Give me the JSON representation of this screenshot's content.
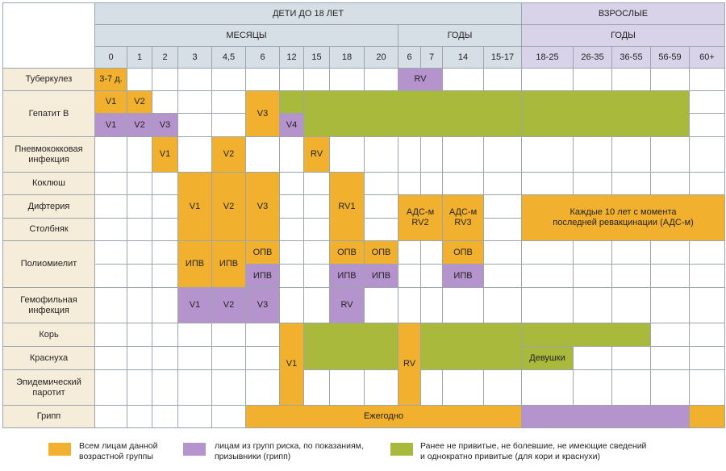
{
  "colors": {
    "grid_line": "#9aa5ad",
    "header_child": "#d5dfe5",
    "header_adult": "#d9d3ea",
    "label_bg": "#f5edd9",
    "orange": "#f1b12f",
    "purple": "#b594cd",
    "green": "#a8b93c"
  },
  "header": {
    "children_title": "ДЕТИ ДО 18 ЛЕТ",
    "adults_title": "ВЗРОСЛЫЕ",
    "months_title": "МЕСЯЦЫ",
    "years_title": "ГОДЫ",
    "adult_years_title": "ГОДЫ",
    "ages": [
      "0",
      "1",
      "2",
      "3",
      "4,5",
      "6",
      "12",
      "15",
      "18",
      "20",
      "6",
      "7",
      "14",
      "15-17",
      "18-25",
      "26-35",
      "36-55",
      "56-59",
      "60+"
    ]
  },
  "rows": [
    "Туберкулез",
    "Гепатит В",
    "Пневмококковая инфекция",
    "Коклюш",
    "Дифтерия",
    "Столбняк",
    "Полиомиелит",
    "Гемофильная инфекция",
    "Корь",
    "Краснуха",
    "Эпидемический паротит",
    "Грипп"
  ],
  "blocks": [
    {
      "r": 0,
      "c": 0,
      "color": "orange",
      "text": "3-7 д."
    },
    {
      "r": 0,
      "c": 10,
      "cs": 2,
      "color": "purple",
      "text": "RV"
    },
    {
      "r": 1,
      "c": 0,
      "color": "orange",
      "text": "V1"
    },
    {
      "r": 1,
      "c": 1,
      "color": "orange",
      "text": "V2"
    },
    {
      "r": 1,
      "c": 5,
      "rs": 2,
      "color": "orange",
      "text": "V3"
    },
    {
      "r": 1,
      "c": 6,
      "color": "green",
      "text": ""
    },
    {
      "r": 1,
      "c": 7,
      "cs": 7,
      "rs": 2,
      "color": "green",
      "text": ""
    },
    {
      "r": 1,
      "c": 14,
      "cs": 4,
      "rs": 2,
      "color": "green",
      "text": ""
    },
    {
      "r": 2,
      "c": 0,
      "color": "purple",
      "text": "V1"
    },
    {
      "r": 2,
      "c": 1,
      "color": "purple",
      "text": "V2"
    },
    {
      "r": 2,
      "c": 2,
      "color": "purple",
      "text": "V3"
    },
    {
      "r": 2,
      "c": 6,
      "color": "purple",
      "text": "V4"
    },
    {
      "r": 3,
      "c": 2,
      "color": "orange",
      "text": "V1"
    },
    {
      "r": 3,
      "c": 4,
      "color": "orange",
      "text": "V2"
    },
    {
      "r": 3,
      "c": 7,
      "color": "orange",
      "text": "RV"
    },
    {
      "r": 4,
      "c": 3,
      "rs": 3,
      "color": "orange",
      "text": "V1"
    },
    {
      "r": 4,
      "c": 4,
      "rs": 3,
      "color": "orange",
      "text": "V2"
    },
    {
      "r": 4,
      "c": 5,
      "rs": 3,
      "color": "orange",
      "text": "V3"
    },
    {
      "r": 4,
      "c": 8,
      "rs": 3,
      "color": "orange",
      "text": "RV1"
    },
    {
      "r": 5,
      "c": 10,
      "cs": 2,
      "rs": 2,
      "color": "orange",
      "text": "АДС-м\nRV2"
    },
    {
      "r": 5,
      "c": 12,
      "rs": 2,
      "color": "orange",
      "text": "АДС-м\nRV3"
    },
    {
      "r": 5,
      "c": 14,
      "cs": 5,
      "rs": 2,
      "color": "orange",
      "text": "Каждые 10 лет с момента\nпоследней ревакцинации (АДС-м)"
    },
    {
      "r": 7,
      "c": 3,
      "rs": 2,
      "color": "orange",
      "text": "ИПВ"
    },
    {
      "r": 7,
      "c": 4,
      "rs": 2,
      "color": "orange",
      "text": "ИПВ"
    },
    {
      "r": 7,
      "c": 5,
      "color": "orange",
      "text": "ОПВ"
    },
    {
      "r": 7,
      "c": 8,
      "color": "orange",
      "text": "ОПВ"
    },
    {
      "r": 7,
      "c": 9,
      "color": "orange",
      "text": "ОПВ"
    },
    {
      "r": 7,
      "c": 12,
      "color": "orange",
      "text": "ОПВ"
    },
    {
      "r": 8,
      "c": 5,
      "color": "purple",
      "text": "ИПВ"
    },
    {
      "r": 8,
      "c": 8,
      "color": "purple",
      "text": "ИПВ"
    },
    {
      "r": 8,
      "c": 9,
      "color": "purple",
      "text": "ИПВ"
    },
    {
      "r": 8,
      "c": 12,
      "color": "purple",
      "text": "ИПВ"
    },
    {
      "r": 9,
      "c": 3,
      "color": "purple",
      "text": "V1"
    },
    {
      "r": 9,
      "c": 4,
      "color": "purple",
      "text": "V2"
    },
    {
      "r": 9,
      "c": 5,
      "color": "purple",
      "text": "V3"
    },
    {
      "r": 9,
      "c": 8,
      "color": "purple",
      "text": "RV"
    },
    {
      "r": 10,
      "c": 6,
      "rs": 3,
      "color": "orange",
      "text": "V1"
    },
    {
      "r": 10,
      "c": 7,
      "cs": 3,
      "rs": 2,
      "color": "green",
      "text": ""
    },
    {
      "r": 10,
      "c": 10,
      "rs": 3,
      "color": "orange",
      "text": "RV"
    },
    {
      "r": 10,
      "c": 11,
      "cs": 3,
      "rs": 2,
      "color": "green",
      "text": ""
    },
    {
      "r": 10,
      "c": 14,
      "cs": 3,
      "color": "green",
      "text": ""
    },
    {
      "r": 11,
      "c": 14,
      "color": "green",
      "text": "Девушки"
    },
    {
      "r": 13,
      "c": 5,
      "cs": 9,
      "color": "orange",
      "text": "Ежегодно"
    },
    {
      "r": 13,
      "c": 14,
      "cs": 4,
      "color": "purple",
      "text": ""
    },
    {
      "r": 13,
      "c": 18,
      "color": "orange",
      "text": ""
    }
  ],
  "legend": [
    {
      "color": "orange",
      "text": "Всем лицам данной\nвозрастной группы"
    },
    {
      "color": "purple",
      "text": "лицам из групп риска, по показаниям,\nпризывники (грипп)"
    },
    {
      "color": "green",
      "text": "Ранее не привитые, не болевшие, не имеющие сведений\nи однократно привитые (для кори и краснухи)"
    }
  ]
}
